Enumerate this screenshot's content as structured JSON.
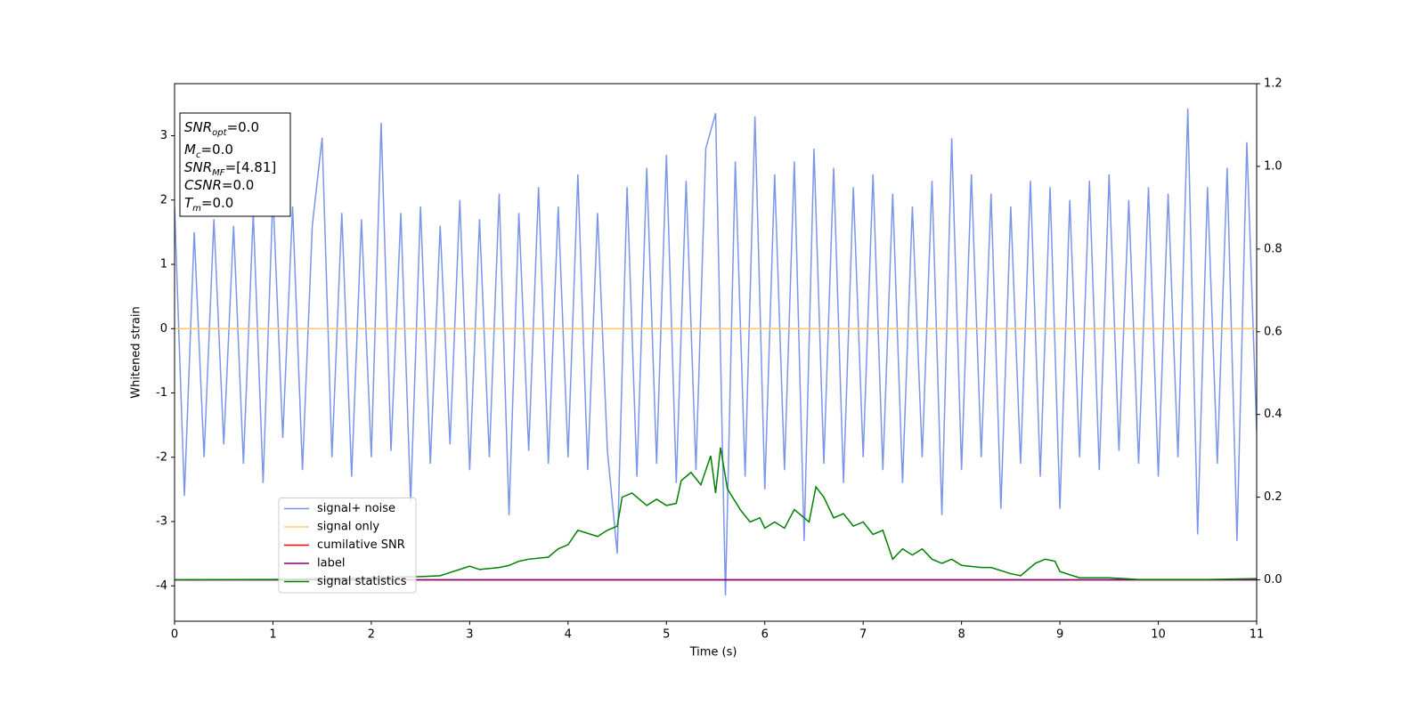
{
  "chart_data": {
    "type": "line",
    "xlabel": "Time (s)",
    "ylabel": "Whitened strain",
    "xlim": [
      0,
      11
    ],
    "xticks": [
      0,
      1,
      2,
      3,
      4,
      5,
      6,
      7,
      8,
      9,
      10,
      11
    ],
    "ylim": [
      -4.55,
      3.81
    ],
    "yticks": [
      -4,
      -3,
      -2,
      -1,
      0,
      1,
      2,
      3
    ],
    "y2lim": [
      -0.1,
      1.2
    ],
    "y2ticks": [
      {
        "value": 0,
        "label": "0.0"
      },
      0.2,
      0.4,
      0.6,
      0.8,
      {
        "value": 1,
        "label": "1.0"
      },
      1.2
    ],
    "legend": "lower left",
    "textbox": [
      {
        "symbol": "SNR",
        "subscript": "opt",
        "text": "=0.0"
      },
      {
        "symbol": "M",
        "subscript": "c",
        "text": "=0.0"
      },
      {
        "symbol": "SNR",
        "subscript": "MF",
        "text": "=[4.81]"
      },
      {
        "symbol": "CSNR",
        "text": "=0.0"
      },
      {
        "symbol": "T",
        "subscript": "m",
        "text": "=0.0"
      }
    ],
    "series": [
      {
        "name": "signal+ noise",
        "color": "#7b96e8",
        "x": [
          0,
          0.1,
          0.2,
          0.3,
          0.4,
          0.5,
          0.6,
          0.7,
          0.8,
          0.9,
          1,
          1.1,
          1.2,
          1.3,
          1.4,
          1.5,
          1.6,
          1.7,
          1.8,
          1.9,
          2,
          2.1,
          2.2,
          2.3,
          2.4,
          2.5,
          2.6,
          2.7,
          2.8,
          2.9,
          3,
          3.1,
          3.2,
          3.3,
          3.4,
          3.5,
          3.6,
          3.7,
          3.8,
          3.9,
          4,
          4.1,
          4.2,
          4.3,
          4.4,
          4.5,
          4.6,
          4.7,
          4.8,
          4.9,
          5,
          5.1,
          5.2,
          5.3,
          5.4,
          5.5,
          5.6,
          5.7,
          5.8,
          5.9,
          6,
          6.1,
          6.2,
          6.3,
          6.4,
          6.5,
          6.6,
          6.7,
          6.8,
          6.9,
          7,
          7.1,
          7.2,
          7.3,
          7.4,
          7.5,
          7.6,
          7.7,
          7.8,
          7.9,
          8,
          8.1,
          8.2,
          8.3,
          8.4,
          8.5,
          8.6,
          8.7,
          8.8,
          8.9,
          9,
          9.1,
          9.2,
          9.3,
          9.4,
          9.5,
          9.6,
          9.7,
          9.8,
          9.9,
          10,
          10.1,
          10.2,
          10.3,
          10.4,
          10.5,
          10.6,
          10.7,
          10.8,
          10.9,
          11
        ],
        "values": [
          1.9,
          -2.6,
          1.5,
          -2.0,
          1.7,
          -1.8,
          1.6,
          -2.1,
          1.8,
          -2.4,
          2.1,
          -1.7,
          1.9,
          -2.2,
          1.6,
          2.97,
          -2.0,
          1.8,
          -2.3,
          1.7,
          -2.0,
          3.2,
          -1.9,
          1.8,
          -2.7,
          1.9,
          -2.1,
          1.6,
          -1.8,
          2.0,
          -2.2,
          1.7,
          -2.0,
          2.1,
          -2.9,
          1.8,
          -1.9,
          2.2,
          -2.1,
          1.9,
          -2.0,
          2.4,
          -2.2,
          1.8,
          -1.9,
          -3.5,
          2.2,
          -2.3,
          2.5,
          -2.1,
          2.7,
          -2.4,
          2.3,
          -2.2,
          2.8,
          3.35,
          -4.15,
          2.6,
          -2.3,
          3.3,
          -2.5,
          2.4,
          -2.2,
          2.6,
          -3.3,
          2.8,
          -2.1,
          2.5,
          -2.4,
          2.2,
          -2.0,
          2.4,
          -2.2,
          2.1,
          -2.4,
          1.9,
          -2.0,
          2.3,
          -2.9,
          2.96,
          -2.2,
          2.4,
          -2.0,
          2.1,
          -2.8,
          1.9,
          -2.1,
          2.3,
          -2.3,
          2.2,
          -2.8,
          2.0,
          -2.0,
          2.3,
          -2.2,
          2.4,
          -1.9,
          2.0,
          -2.1,
          2.2,
          -2.3,
          2.1,
          -2.0,
          3.42,
          -3.2,
          2.2,
          -2.1,
          2.5,
          -3.3,
          2.9,
          -1.6
        ]
      },
      {
        "name": "signal only",
        "color": "#ffc870",
        "x": [
          0,
          11
        ],
        "values": [
          0,
          0
        ]
      },
      {
        "name": "cumilative SNR",
        "color": "#ff0000",
        "axis": "y2",
        "x": [
          0,
          11
        ],
        "values": [
          0,
          0
        ]
      },
      {
        "name": "label",
        "color": "#800080",
        "axis": "y2",
        "x": [
          0,
          11
        ],
        "values": [
          0,
          0
        ]
      },
      {
        "name": "signal statistics",
        "color": "#008000",
        "axis": "y2",
        "x": [
          0,
          1,
          2,
          2.5,
          2.7,
          3,
          3.1,
          3.3,
          3.4,
          3.5,
          3.6,
          3.8,
          3.9,
          4,
          4.1,
          4.3,
          4.4,
          4.5,
          4.55,
          4.65,
          4.8,
          4.9,
          5,
          5.1,
          5.15,
          5.25,
          5.35,
          5.45,
          5.5,
          5.55,
          5.62,
          5.75,
          5.85,
          5.95,
          6,
          6.1,
          6.2,
          6.3,
          6.45,
          6.52,
          6.6,
          6.7,
          6.8,
          6.9,
          7,
          7.1,
          7.2,
          7.3,
          7.4,
          7.5,
          7.6,
          7.7,
          7.8,
          7.9,
          8,
          8.2,
          8.3,
          8.5,
          8.6,
          8.75,
          8.85,
          8.95,
          9,
          9.2,
          9.5,
          9.8,
          10.5,
          11
        ],
        "values": [
          0,
          0.001,
          0.005,
          0.008,
          0.01,
          0.033,
          0.025,
          0.03,
          0.035,
          0.045,
          0.05,
          0.055,
          0.075,
          0.085,
          0.12,
          0.105,
          0.12,
          0.13,
          0.2,
          0.21,
          0.18,
          0.195,
          0.18,
          0.185,
          0.24,
          0.26,
          0.23,
          0.3,
          0.21,
          0.32,
          0.22,
          0.17,
          0.14,
          0.15,
          0.125,
          0.14,
          0.125,
          0.17,
          0.14,
          0.225,
          0.2,
          0.15,
          0.16,
          0.13,
          0.14,
          0.11,
          0.12,
          0.05,
          0.075,
          0.06,
          0.075,
          0.05,
          0.04,
          0.05,
          0.035,
          0.03,
          0.03,
          0.015,
          0.01,
          0.04,
          0.05,
          0.045,
          0.02,
          0.005,
          0.005,
          0.001,
          0.001,
          0.003
        ]
      }
    ]
  }
}
